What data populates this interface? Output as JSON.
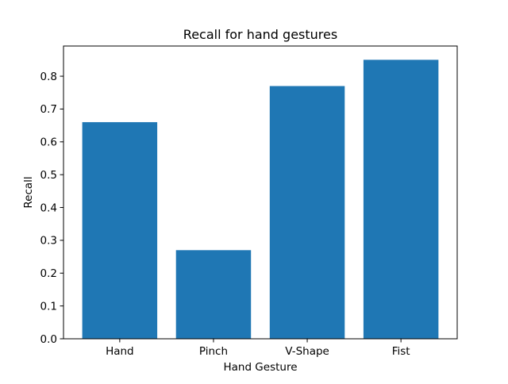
{
  "chart_data": {
    "type": "bar",
    "title": "Recall for hand gestures",
    "xlabel": "Hand Gesture",
    "ylabel": "Recall",
    "categories": [
      "Hand",
      "Pinch",
      "V-Shape",
      "Fist"
    ],
    "values": [
      0.66,
      0.27,
      0.77,
      0.85
    ],
    "ylim": [
      0,
      0.892
    ],
    "yticks": [
      "0.0",
      "0.1",
      "0.2",
      "0.3",
      "0.4",
      "0.5",
      "0.6",
      "0.7",
      "0.8"
    ],
    "bar_color": "#1f77b4",
    "grid": false,
    "legend": "none"
  }
}
